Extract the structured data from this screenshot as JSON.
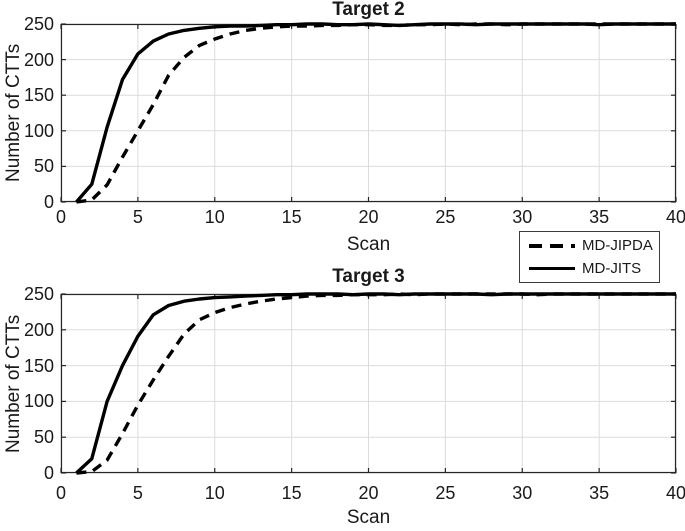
{
  "figure": {
    "background": "#ffffff",
    "text_color": "#1a1a1a",
    "axis_color": "#262626",
    "grid_color": "#dbdbdb",
    "line_color": "#000000"
  },
  "legend": {
    "entries": [
      {
        "label": "MD-JIPDA",
        "style": "dashed"
      },
      {
        "label": "MD-JITS",
        "style": "solid"
      }
    ]
  },
  "chart_data": [
    {
      "type": "line",
      "title": "Target 2",
      "xlabel": "Scan",
      "ylabel": "Number of CTTs",
      "xlim": [
        0,
        40
      ],
      "ylim": [
        0,
        250
      ],
      "xticks": [
        0,
        5,
        10,
        15,
        20,
        25,
        30,
        35,
        40
      ],
      "yticks": [
        0,
        50,
        100,
        150,
        200,
        250
      ],
      "grid": true,
      "x": [
        1,
        2,
        3,
        4,
        5,
        6,
        7,
        8,
        9,
        10,
        11,
        12,
        13,
        14,
        15,
        16,
        17,
        18,
        19,
        20,
        21,
        22,
        23,
        24,
        25,
        26,
        27,
        28,
        29,
        30,
        31,
        32,
        33,
        34,
        35,
        36,
        37,
        38,
        39,
        40
      ],
      "series": [
        {
          "name": "MD-JIPDA",
          "style": "dashed",
          "values": [
            0,
            3,
            24,
            63,
            100,
            137,
            178,
            203,
            220,
            229,
            236,
            241,
            244,
            246,
            247,
            247,
            248,
            248,
            249,
            249,
            248,
            248,
            249,
            249,
            250,
            249,
            250,
            250,
            249,
            250,
            250,
            250,
            250,
            250,
            250,
            250,
            250,
            250,
            250,
            250
          ]
        },
        {
          "name": "MD-JITS",
          "style": "solid",
          "values": [
            0,
            25,
            105,
            172,
            208,
            226,
            236,
            241,
            244,
            246,
            247,
            247,
            248,
            249,
            249,
            250,
            250,
            249,
            249,
            250,
            249,
            248,
            249,
            250,
            250,
            250,
            249,
            250,
            250,
            250,
            250,
            250,
            250,
            250,
            249,
            250,
            250,
            250,
            250,
            250
          ]
        }
      ]
    },
    {
      "type": "line",
      "title": "Target 3",
      "xlabel": "Scan",
      "ylabel": "Number of CTTs",
      "xlim": [
        0,
        40
      ],
      "ylim": [
        0,
        250
      ],
      "xticks": [
        0,
        5,
        10,
        15,
        20,
        25,
        30,
        35,
        40
      ],
      "yticks": [
        0,
        50,
        100,
        150,
        200,
        250
      ],
      "grid": true,
      "x": [
        1,
        2,
        3,
        4,
        5,
        6,
        7,
        8,
        9,
        10,
        11,
        12,
        13,
        14,
        15,
        16,
        17,
        18,
        19,
        20,
        21,
        22,
        23,
        24,
        25,
        26,
        27,
        28,
        29,
        30,
        31,
        32,
        33,
        34,
        35,
        36,
        37,
        38,
        39,
        40
      ],
      "series": [
        {
          "name": "MD-JIPDA",
          "style": "dashed",
          "values": [
            0,
            2,
            18,
            55,
            95,
            130,
            163,
            194,
            214,
            224,
            231,
            236,
            240,
            243,
            245,
            247,
            248,
            248,
            249,
            249,
            249,
            250,
            249,
            250,
            250,
            250,
            250,
            250,
            250,
            250,
            249,
            250,
            250,
            250,
            250,
            250,
            250,
            250,
            250,
            250
          ]
        },
        {
          "name": "MD-JITS",
          "style": "solid",
          "values": [
            0,
            20,
            100,
            150,
            191,
            221,
            234,
            240,
            243,
            245,
            246,
            247,
            248,
            249,
            249,
            250,
            250,
            250,
            249,
            250,
            250,
            249,
            250,
            250,
            250,
            250,
            250,
            249,
            250,
            250,
            250,
            250,
            250,
            250,
            250,
            250,
            250,
            250,
            250,
            250
          ]
        }
      ]
    }
  ]
}
